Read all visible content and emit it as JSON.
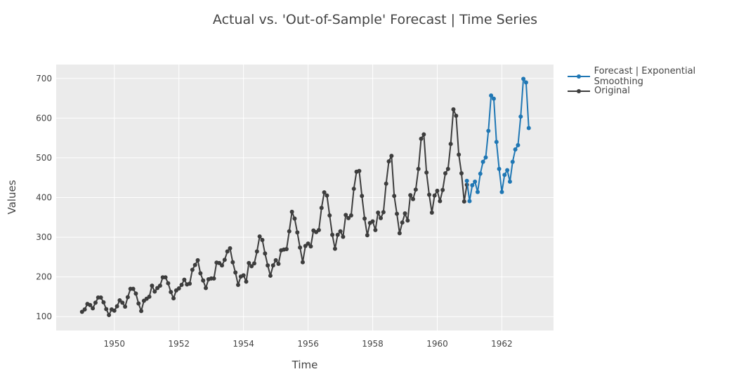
{
  "chart_data": {
    "type": "line",
    "title": "Actual vs. 'Out-of-Sample' Forecast | Time Series",
    "xlabel": "Time",
    "ylabel": "Values",
    "xlim": [
      1948.2,
      1963.6
    ],
    "ylim": [
      65,
      735
    ],
    "x_ticks": [
      1950,
      1952,
      1954,
      1956,
      1958,
      1960,
      1962
    ],
    "y_ticks": [
      100,
      200,
      300,
      400,
      500,
      600,
      700
    ],
    "grid": true,
    "legend_position": "top-right",
    "series": [
      {
        "name": "Original",
        "color": "#3d3d3d",
        "start_year": 1949,
        "frequency": "monthly",
        "values": [
          112,
          118,
          132,
          129,
          121,
          135,
          148,
          148,
          136,
          119,
          104,
          118,
          115,
          126,
          141,
          135,
          125,
          149,
          170,
          170,
          158,
          133,
          114,
          140,
          145,
          150,
          178,
          163,
          172,
          178,
          199,
          199,
          184,
          162,
          146,
          166,
          171,
          180,
          193,
          181,
          183,
          218,
          230,
          242,
          209,
          191,
          172,
          194,
          196,
          196,
          236,
          235,
          229,
          243,
          264,
          272,
          237,
          211,
          180,
          201,
          204,
          188,
          235,
          227,
          234,
          264,
          302,
          293,
          259,
          229,
          203,
          229,
          242,
          233,
          267,
          269,
          270,
          315,
          364,
          347,
          312,
          274,
          237,
          278,
          284,
          277,
          317,
          313,
          318,
          374,
          413,
          405,
          355,
          306,
          271,
          306,
          315,
          301,
          356,
          348,
          355,
          422,
          465,
          467,
          404,
          347,
          305,
          336,
          340,
          318,
          362,
          348,
          363,
          435,
          491,
          505,
          404,
          359,
          310,
          337,
          360,
          342,
          406,
          396,
          420,
          472,
          548,
          559,
          463,
          407,
          362,
          405,
          417,
          391,
          419,
          461,
          472,
          535,
          622,
          606,
          508,
          461,
          390,
          432
        ]
      },
      {
        "name": "Forecast | Exponential Smoothing",
        "color": "#1f77b4",
        "start_year": 1960.9167,
        "frequency": "monthly",
        "values": [
          442,
          391,
          431,
          440,
          414,
          460,
          490,
          501,
          568,
          657,
          649,
          540,
          472,
          414,
          457,
          469,
          440,
          490,
          521,
          532,
          604,
          699,
          690,
          575
        ]
      }
    ]
  }
}
